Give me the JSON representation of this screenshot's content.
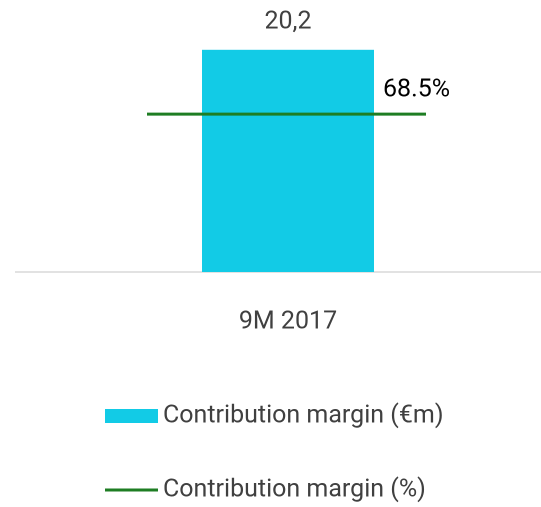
{
  "chart_data": {
    "type": "combo",
    "categories": [
      "9M 2017"
    ],
    "series": [
      {
        "name": "Contribution margin (€m)",
        "type": "bar",
        "color": "#12cbe6",
        "values": [
          20.2
        ],
        "value_labels": [
          "20,2"
        ]
      },
      {
        "name": "Contribution margin (%)",
        "type": "line",
        "axis": "y2",
        "color": "#1e7d23",
        "values": [
          68.5
        ],
        "value_labels": [
          "68.5%"
        ]
      }
    ],
    "ylim": [
      0,
      22
    ],
    "y2lim": [
      0,
      105
    ],
    "grid": false
  }
}
